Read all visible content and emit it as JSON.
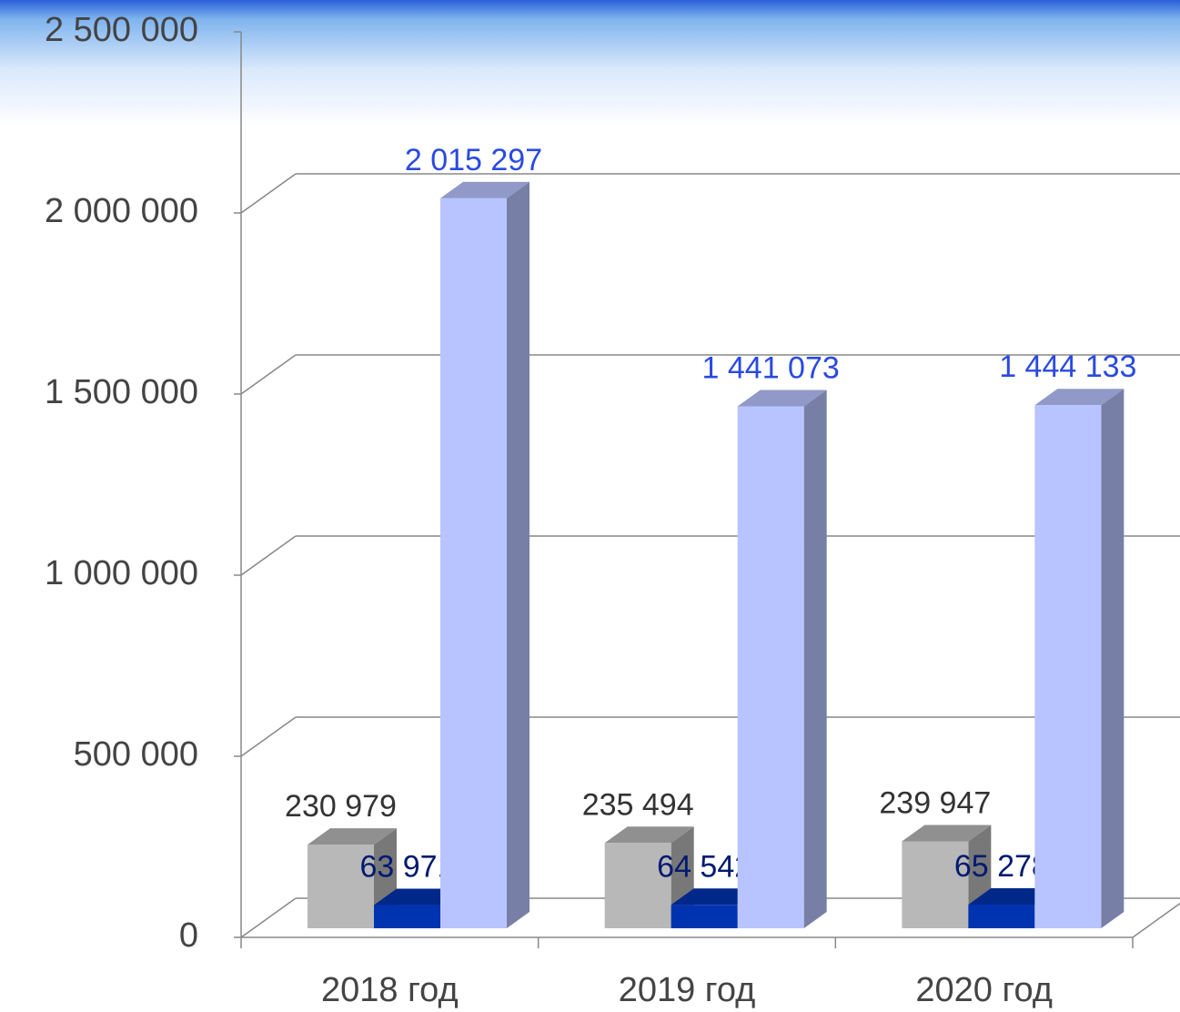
{
  "chart_data": {
    "type": "bar3d",
    "categories": [
      "2018 год",
      "2019 год",
      "2020 год"
    ],
    "series": [
      {
        "color": "#b8b8b8",
        "values": [
          230979,
          235494,
          239947
        ],
        "value_labels": [
          "230 979",
          "235 494",
          "239 947"
        ],
        "label_color": "#333333"
      },
      {
        "color": "#0033b0",
        "values": [
          63971,
          64542,
          65278
        ],
        "value_labels": [
          "63 971",
          "64 542",
          "65 278"
        ],
        "label_color": "#001a70"
      },
      {
        "color": "#b8c4ff",
        "values": [
          2015297,
          1441073,
          1444133
        ],
        "value_labels": [
          "2 015 297",
          "1 441 073",
          "1 444 133"
        ],
        "label_color": "#2a4ae0"
      }
    ],
    "ylim": [
      0,
      2500000
    ],
    "yticks": [
      0,
      {
        "value": 500000,
        "label": "500 000"
      },
      {
        "value": 1000000,
        "label": "1 000 000"
      },
      {
        "value": 1500000,
        "label": "1 500 000"
      },
      {
        "value": 2000000,
        "label": "2 000 000"
      },
      {
        "value": 2500000,
        "label": "2 500 000"
      }
    ],
    "grid": true
  }
}
